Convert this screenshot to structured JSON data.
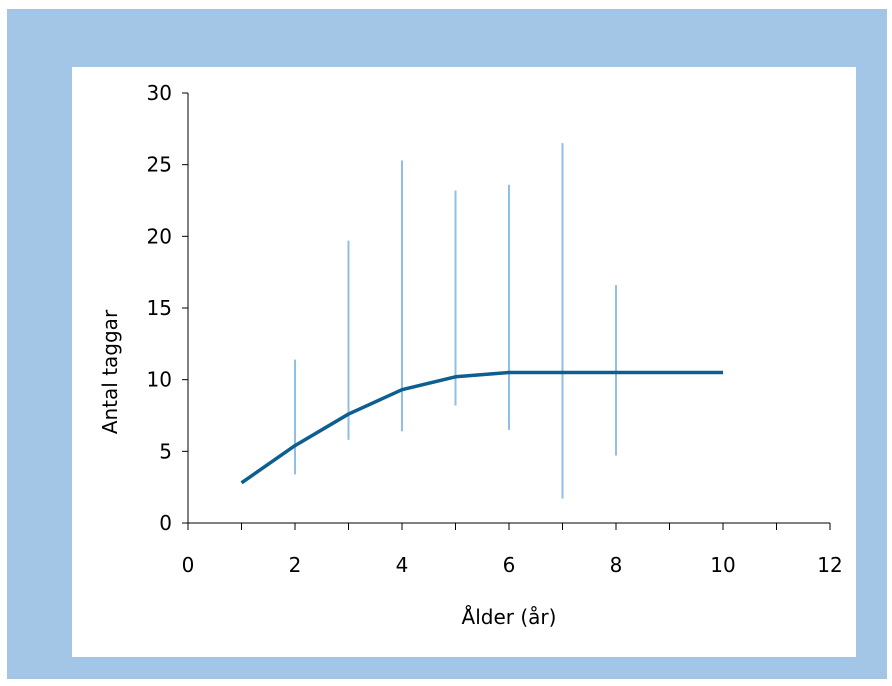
{
  "colors": {
    "frame": "#a3c6e6",
    "panel": "#ffffff",
    "line": "#0d5f91",
    "error_bars": "#8fbfe6",
    "axis": "#000000"
  },
  "chart_data": {
    "type": "line",
    "title": "",
    "xlabel": "Ålder (år)",
    "ylabel": "Antal taggar",
    "xlim": [
      0,
      12
    ],
    "ylim": [
      0,
      30
    ],
    "x_ticks": [
      0,
      2,
      4,
      6,
      8,
      10,
      12
    ],
    "y_ticks": [
      0,
      5,
      10,
      15,
      20,
      25,
      30
    ],
    "grid": false,
    "legend": "none",
    "series": [
      {
        "x": [
          1,
          2,
          3,
          4,
          5,
          6,
          7,
          8,
          9,
          10
        ],
        "y": [
          2.8,
          5.4,
          7.6,
          9.3,
          10.2,
          10.5,
          10.5,
          10.5,
          10.5,
          10.5
        ]
      }
    ],
    "error_bars": [
      {
        "x": 2,
        "low": 3.4,
        "high": 11.4
      },
      {
        "x": 3,
        "low": 5.8,
        "high": 19.7
      },
      {
        "x": 4,
        "low": 6.4,
        "high": 25.3
      },
      {
        "x": 5,
        "low": 8.2,
        "high": 23.2
      },
      {
        "x": 6,
        "low": 6.5,
        "high": 23.6
      },
      {
        "x": 7,
        "low": 1.7,
        "high": 26.5
      },
      {
        "x": 8,
        "low": 4.7,
        "high": 16.6
      }
    ]
  }
}
